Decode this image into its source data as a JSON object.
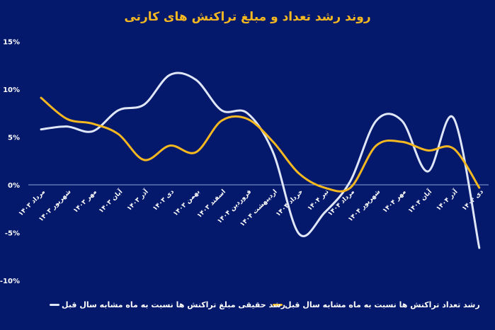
{
  "chart_data": {
    "type": "line",
    "title": "روند رشد تعداد و مبلغ تراکنش های کارتی",
    "categories": [
      "مرداد ۱۴۰۳",
      "شهریور ۱۴۰۳",
      "مهر ۱۴۰۳",
      "آبان ۱۴۰۳",
      "آذر ۱۴۰۳",
      "دی ۱۴۰۳",
      "بهمن ۱۴۰۳",
      "اسفند ۱۴۰۳",
      "فروردین ۱۴۰۴",
      "اردیبهشت ۱۴۰۴",
      "خرداد ۱۴۰۴",
      "تیر ۱۴۰۴",
      "مرداد ۱۴۰۴",
      "شهریور ۱۴۰۴",
      "مهر ۱۴۰۴",
      "آبان ۱۴۰۴",
      "آذر ۱۴۰۴",
      "دی ۱۴۰۴"
    ],
    "series": [
      {
        "name": "رشد حقیقی مبلغ تراکنش ها نسبت به ماه مشابه سال قبل",
        "color": "#dfe6f7",
        "values": [
          5.8,
          6.1,
          5.6,
          7.8,
          8.4,
          11.5,
          11.0,
          7.8,
          7.5,
          3.4,
          -5.1,
          -2.9,
          0.4,
          6.7,
          6.7,
          1.4,
          7.0,
          -6.6
        ]
      },
      {
        "name": "رشد تعداد تراکنش ها نسبت به ماه مشابه سال قبل",
        "color": "#f5b821",
        "values": [
          9.1,
          6.9,
          6.4,
          5.3,
          2.6,
          4.1,
          3.4,
          6.7,
          6.9,
          4.5,
          1.2,
          -0.3,
          -0.3,
          4.1,
          4.5,
          3.6,
          3.8,
          -0.3
        ]
      }
    ],
    "yticks": [
      "15%",
      "10%",
      "5%",
      "0%",
      "-5%",
      "-10%"
    ],
    "ylim": [
      -10,
      15
    ],
    "grid": "zero-line only",
    "legend": "bottom",
    "background": "#04196b"
  }
}
